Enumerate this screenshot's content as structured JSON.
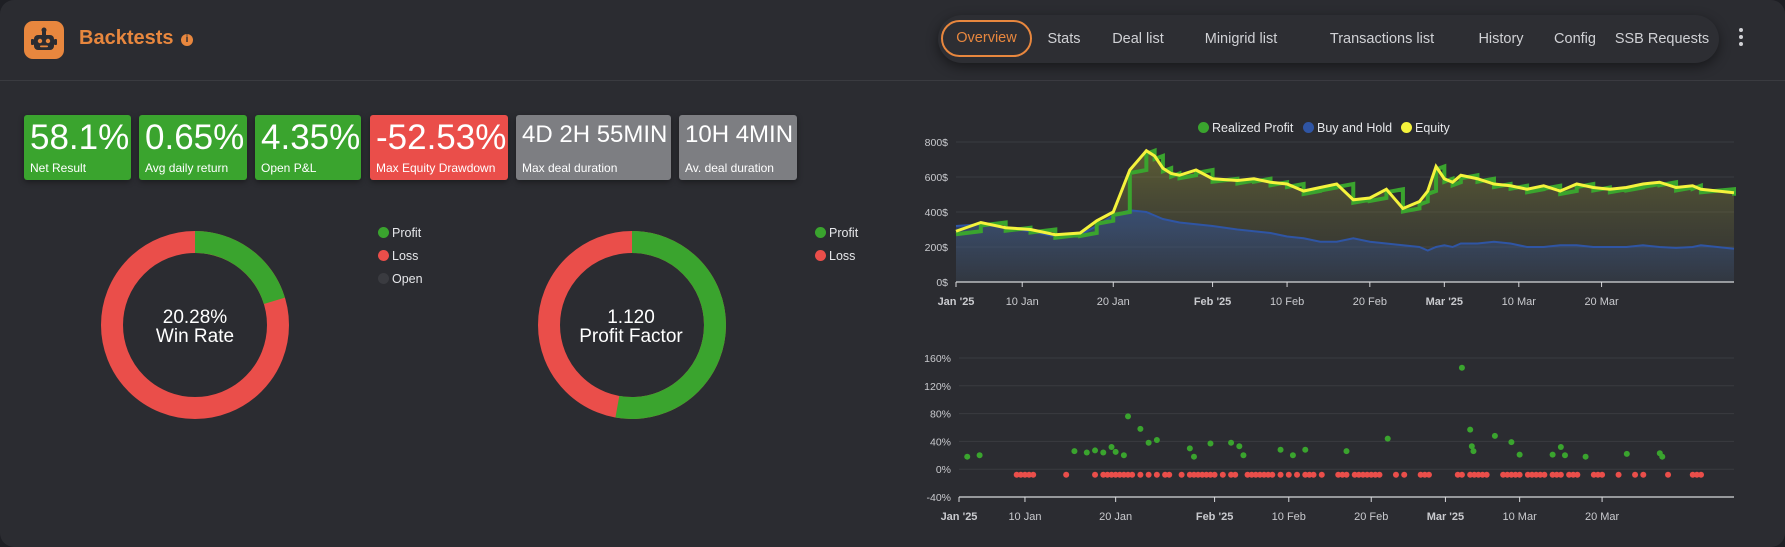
{
  "header": {
    "title": "Backtests",
    "info_glyph": "i",
    "logo_icon": "robot-icon",
    "tabs": [
      "Overview",
      "Stats",
      "Deal list",
      "Minigrid list",
      "Transactions list",
      "History",
      "Config",
      "SSB Requests"
    ],
    "active_tab": "Overview"
  },
  "stats": [
    {
      "value": "58.1%",
      "label": "Net Result",
      "color": "#3aa42e"
    },
    {
      "value": "0.65%",
      "label": "Avg daily return",
      "color": "#3aa42e"
    },
    {
      "value": "4.35%",
      "label": "Open P&L",
      "color": "#3aa42e"
    },
    {
      "value": "-52.53%",
      "label": "Max Equity Drawdown",
      "color": "#ea4e4a"
    },
    {
      "value": "4D 2H 55MIN",
      "label": "Max deal duration",
      "color": "#7d7e82"
    },
    {
      "value": "10H 4MIN",
      "label": "Av. deal duration",
      "color": "#7d7e82"
    }
  ],
  "win_rate": {
    "value": "20.28%",
    "label": "Win Rate",
    "legend": [
      "Profit",
      "Loss",
      "Open"
    ],
    "profit_fraction": 0.2028,
    "colors": {
      "profit": "#3aa42e",
      "loss": "#ea4e4a",
      "open": "#3a3b40"
    }
  },
  "profit_factor": {
    "value": "1.120",
    "label": "Profit Factor",
    "legend": [
      "Profit",
      "Loss"
    ],
    "profit_fraction": 0.528,
    "colors": {
      "profit": "#3aa42e",
      "loss": "#ea4e4a"
    }
  },
  "chart_data": [
    {
      "type": "area",
      "legend": [
        "Realized Profit",
        "Buy and Hold",
        "Equity"
      ],
      "colors": {
        "realized": "#3aa42e",
        "buyhold": "#2f55a4",
        "equity": "#f5f33c"
      },
      "ylim": [
        0,
        800
      ],
      "yticks": [
        "0$",
        "200$",
        "400$",
        "600$",
        "800$"
      ],
      "xticks": [
        "Jan '25",
        "10 Jan",
        "20 Jan",
        "Feb '25",
        "10 Feb",
        "20 Feb",
        "Mar '25",
        "10 Mar",
        "20 Mar"
      ],
      "x_days": [
        0,
        3,
        6,
        9,
        12,
        15,
        17,
        19,
        21,
        23,
        24,
        25,
        26,
        27,
        29,
        31,
        34,
        36,
        38,
        40,
        42,
        44,
        46,
        48,
        50,
        52,
        54,
        56,
        57,
        58,
        59,
        60,
        61,
        63,
        65,
        67,
        69,
        71,
        73,
        75,
        77,
        79,
        81,
        83,
        85,
        87,
        89,
        90,
        94
      ],
      "equity": [
        290,
        340,
        310,
        300,
        270,
        280,
        350,
        400,
        640,
        750,
        720,
        650,
        620,
        610,
        640,
        590,
        580,
        590,
        570,
        560,
        520,
        540,
        560,
        470,
        480,
        530,
        420,
        460,
        520,
        660,
        590,
        570,
        610,
        590,
        560,
        550,
        530,
        550,
        520,
        560,
        540,
        530,
        540,
        560,
        570,
        540,
        550,
        530,
        510
      ],
      "buyhold": [
        320,
        330,
        310,
        290,
        260,
        270,
        320,
        380,
        410,
        400,
        380,
        360,
        350,
        340,
        330,
        320,
        300,
        290,
        280,
        260,
        250,
        230,
        230,
        250,
        230,
        220,
        210,
        200,
        180,
        200,
        210,
        200,
        220,
        220,
        230,
        220,
        200,
        200,
        210,
        210,
        200,
        200,
        200,
        210,
        200,
        195,
        200,
        210,
        190
      ]
    },
    {
      "type": "scatter",
      "ylim": [
        -40,
        160
      ],
      "yticks": [
        "-40%",
        "0%",
        "40%",
        "80%",
        "120%",
        "160%"
      ],
      "xticks": [
        "Jan '25",
        "10 Jan",
        "20 Jan",
        "Feb '25",
        "10 Feb",
        "20 Feb",
        "Mar '25",
        "10 Mar",
        "20 Mar"
      ],
      "colors": {
        "profit": "#3aa42e",
        "loss": "#ea4e4a"
      },
      "profit_points": [
        [
          1,
          18
        ],
        [
          2.5,
          20
        ],
        [
          14,
          26
        ],
        [
          15.5,
          24
        ],
        [
          16.5,
          27
        ],
        [
          17.5,
          24
        ],
        [
          18.5,
          32
        ],
        [
          19,
          25
        ],
        [
          20,
          20
        ],
        [
          20.5,
          76
        ],
        [
          22,
          58
        ],
        [
          23,
          38
        ],
        [
          24,
          42
        ],
        [
          28,
          30
        ],
        [
          28.5,
          18
        ],
        [
          30.5,
          37
        ],
        [
          33,
          38
        ],
        [
          34,
          33
        ],
        [
          34.5,
          20
        ],
        [
          39,
          28
        ],
        [
          40.5,
          20
        ],
        [
          42,
          28
        ],
        [
          47,
          26
        ],
        [
          52,
          44
        ],
        [
          61,
          146
        ],
        [
          62,
          57
        ],
        [
          62.2,
          33
        ],
        [
          62.4,
          26
        ],
        [
          65,
          48
        ],
        [
          67,
          39
        ],
        [
          68,
          21
        ],
        [
          72,
          21
        ],
        [
          73,
          32
        ],
        [
          73.5,
          20
        ],
        [
          76,
          18
        ],
        [
          81,
          22
        ],
        [
          85,
          23
        ],
        [
          85.3,
          18
        ]
      ],
      "loss_points": [
        [
          7,
          -8
        ],
        [
          7.5,
          -8
        ],
        [
          8,
          -8
        ],
        [
          8.5,
          -8
        ],
        [
          9,
          -8
        ],
        [
          13,
          -8
        ],
        [
          16.5,
          -8
        ],
        [
          17.5,
          -8
        ],
        [
          18,
          -8
        ],
        [
          18.5,
          -8
        ],
        [
          19,
          -8
        ],
        [
          19.5,
          -8
        ],
        [
          20,
          -8
        ],
        [
          20.5,
          -8
        ],
        [
          21,
          -8
        ],
        [
          22,
          -8
        ],
        [
          23,
          -8
        ],
        [
          24,
          -8
        ],
        [
          25,
          -8
        ],
        [
          25.5,
          -8
        ],
        [
          27,
          -8
        ],
        [
          28,
          -8
        ],
        [
          28.5,
          -8
        ],
        [
          29,
          -8
        ],
        [
          29.5,
          -8
        ],
        [
          30,
          -8
        ],
        [
          30.5,
          -8
        ],
        [
          31,
          -8
        ],
        [
          32,
          -8
        ],
        [
          33,
          -8
        ],
        [
          33.5,
          -8
        ],
        [
          35,
          -8
        ],
        [
          35.5,
          -8
        ],
        [
          36,
          -8
        ],
        [
          36.5,
          -8
        ],
        [
          37,
          -8
        ],
        [
          37.5,
          -8
        ],
        [
          38,
          -8
        ],
        [
          39,
          -8
        ],
        [
          40,
          -8
        ],
        [
          41,
          -8
        ],
        [
          42,
          -8
        ],
        [
          42.5,
          -8
        ],
        [
          43,
          -8
        ],
        [
          44,
          -8
        ],
        [
          46,
          -8
        ],
        [
          46.5,
          -8
        ],
        [
          47,
          -8
        ],
        [
          48,
          -8
        ],
        [
          48.5,
          -8
        ],
        [
          49,
          -8
        ],
        [
          49.5,
          -8
        ],
        [
          50,
          -8
        ],
        [
          50.5,
          -8
        ],
        [
          51,
          -8
        ],
        [
          53,
          -8
        ],
        [
          54,
          -8
        ],
        [
          56,
          -8
        ],
        [
          56.5,
          -8
        ],
        [
          57,
          -8
        ],
        [
          60.5,
          -8
        ],
        [
          61,
          -8
        ],
        [
          62,
          -8
        ],
        [
          62.5,
          -8
        ],
        [
          63,
          -8
        ],
        [
          63.5,
          -8
        ],
        [
          64,
          -8
        ],
        [
          66,
          -8
        ],
        [
          66.5,
          -8
        ],
        [
          67,
          -8
        ],
        [
          67.5,
          -8
        ],
        [
          68,
          -8
        ],
        [
          69,
          -8
        ],
        [
          69.5,
          -8
        ],
        [
          70,
          -8
        ],
        [
          70.5,
          -8
        ],
        [
          71,
          -8
        ],
        [
          72,
          -8
        ],
        [
          72.5,
          -8
        ],
        [
          73,
          -8
        ],
        [
          74,
          -8
        ],
        [
          74.5,
          -8
        ],
        [
          75,
          -8
        ],
        [
          77,
          -8
        ],
        [
          77.5,
          -8
        ],
        [
          78,
          -8
        ],
        [
          80,
          -8
        ],
        [
          82,
          -8
        ],
        [
          83,
          -8
        ],
        [
          86,
          -8
        ],
        [
          89,
          -8
        ],
        [
          89.5,
          -8
        ],
        [
          90,
          -8
        ]
      ]
    }
  ]
}
